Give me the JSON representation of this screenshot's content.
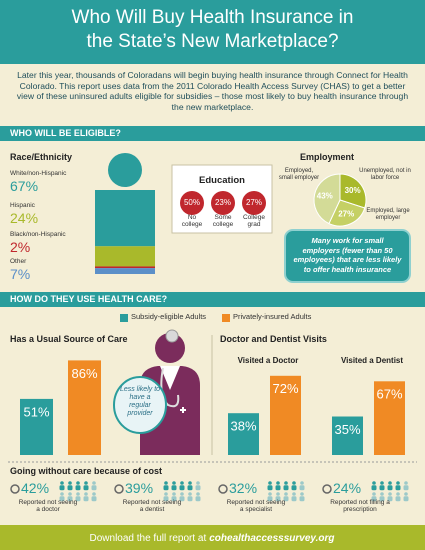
{
  "header": {
    "title": "Who Will Buy Health Insurance in the State’s New Marketplace?",
    "intro": "Later this year, thousands of Coloradans will begin buying health insurance through Connect for Health Colorado. This report uses data from the 2011 Colorado Health Access Survey (CHAS) to get a better view of these uninsured adults eligible for subsidies – those most likely to buy health insurance through the new marketplace."
  },
  "sections": {
    "eligible": "WHO WILL BE ELIGIBLE?",
    "usage": "HOW DO THEY USE HEALTH CARE?"
  },
  "race": {
    "title": "Race/Ethnicity",
    "groups": [
      {
        "name": "White/non-Hispanic",
        "value": 67,
        "value_label": "67%",
        "color": "#2a9d9c"
      },
      {
        "name": "Hispanic",
        "value": 24,
        "value_label": "24%",
        "color": "#a9b92b"
      },
      {
        "name": "Black/non-Hispanic",
        "value": 2,
        "value_label": "2%",
        "color": "#c0272d"
      },
      {
        "name": "Other",
        "value": 7,
        "value_label": "7%",
        "color": "#5b8fc8"
      }
    ]
  },
  "education": {
    "title": "Education",
    "items": [
      {
        "value": "50%",
        "label": "No college"
      },
      {
        "value": "23%",
        "label": "Some college"
      },
      {
        "value": "27%",
        "label": "College grad"
      }
    ]
  },
  "employment": {
    "title": "Employment",
    "slices": [
      {
        "name": "Unemployed, not in labor force",
        "value": 30,
        "value_label": "30%",
        "color": "#a9b92b"
      },
      {
        "name": "Employed, large employer",
        "value": 27,
        "value_label": "27%",
        "color": "#c5d064"
      },
      {
        "name": "Employed, small employer",
        "value": 43,
        "value_label": "43%",
        "color": "#d3db97"
      }
    ],
    "note": "Many work for small employers (fewer than 50 employees) that are less likely to offer health insurance"
  },
  "legend": [
    {
      "name": "Subsidy-eligible Adults",
      "color": "#2a9d9c"
    },
    {
      "name": "Privately-insured Adults",
      "color": "#f08a24"
    }
  ],
  "usual_source": {
    "title": "Has a Usual Source of Care",
    "values": [
      51,
      86
    ],
    "value_labels": [
      "51%",
      "86%"
    ],
    "callout": "Less likely to have a regular provider"
  },
  "visits": {
    "title": "Doctor and Dentist Visits",
    "groups": [
      {
        "name": "Visited a Doctor",
        "values": [
          38,
          72
        ],
        "value_labels": [
          "38%",
          "72%"
        ]
      },
      {
        "name": "Visited a Dentist",
        "values": [
          35,
          67
        ],
        "value_labels": [
          "35%",
          "67%"
        ]
      }
    ]
  },
  "going_without": {
    "title": "Going without care because of cost",
    "items": [
      {
        "value": "42%",
        "label": "Reported not seeing a doctor"
      },
      {
        "value": "39%",
        "label": "Reported not seeing a dentist"
      },
      {
        "value": "32%",
        "label": "Reported not seeing a specialist"
      },
      {
        "value": "24%",
        "label": "Reported not filling a prescription"
      }
    ]
  },
  "footer": {
    "text": "Download the full report at",
    "link": "cohealthaccesssurvey.org"
  }
}
